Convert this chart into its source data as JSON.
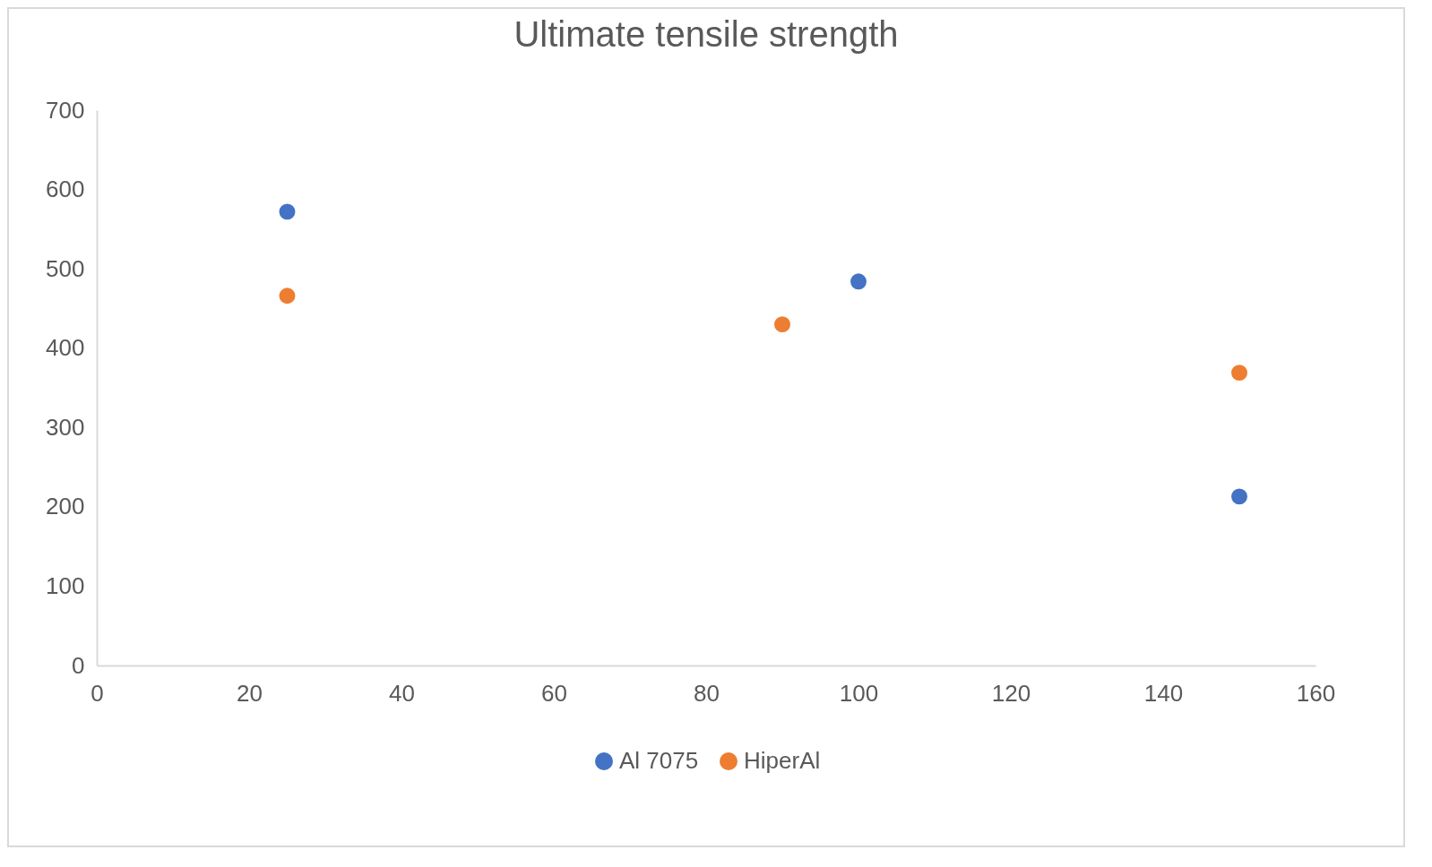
{
  "chart_data": {
    "type": "scatter",
    "title": "Ultimate tensile strength",
    "series": [
      {
        "name": "Al 7075",
        "color": "#4472c4",
        "x": [
          25,
          100,
          150
        ],
        "values": [
          572,
          484,
          213
        ]
      },
      {
        "name": "HiperAl",
        "color": "#ed7d31",
        "x": [
          25,
          90,
          150
        ],
        "values": [
          466,
          430,
          369
        ]
      }
    ],
    "xlim": [
      0,
      160
    ],
    "xticks": [
      0,
      20,
      40,
      60,
      80,
      100,
      120,
      140,
      160
    ],
    "ylim": [
      0,
      700
    ],
    "yticks": [
      0,
      100,
      200,
      300,
      400,
      500,
      600,
      700
    ],
    "grid": false,
    "legend": "bottom",
    "marker": "circle"
  }
}
